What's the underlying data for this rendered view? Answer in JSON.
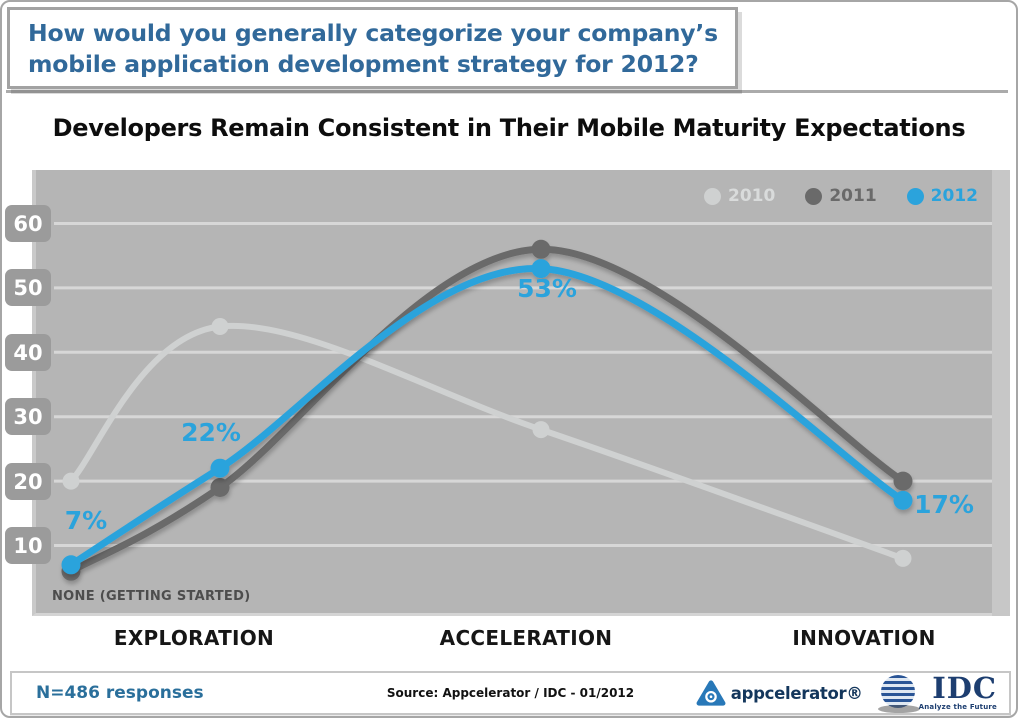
{
  "header": {
    "question": "How would you generally categorize your company’s mobile application development strategy for 2012?"
  },
  "title": "Developers Remain Consistent in Their Mobile Maturity Expectations",
  "chart_data": {
    "type": "line",
    "categories": [
      "NONE (GETTING STARTED)",
      "EXPLORATION",
      "ACCELERATION",
      "INNOVATION"
    ],
    "yticks": [
      60,
      50,
      40,
      30,
      20,
      10
    ],
    "ylim": [
      0,
      65
    ],
    "grid": true,
    "legend_position": "top-right",
    "series": [
      {
        "name": "2010",
        "color": "#cfd1d1",
        "values": [
          20,
          44,
          28,
          8
        ]
      },
      {
        "name": "2011",
        "color": "#6a6a6a",
        "values": [
          6,
          19,
          56,
          20
        ]
      },
      {
        "name": "2012",
        "color": "#2ba3dc",
        "values": [
          7,
          22,
          53,
          17
        ],
        "point_labels": [
          "7%",
          "22%",
          "53%",
          "17%"
        ]
      }
    ]
  },
  "colors": {
    "question_blue": "#31699a",
    "panel_gray": "#b5b5b5",
    "gridline": "#d7d7d7",
    "tick_badge": "#9b9b9b",
    "responses_blue": "#2a6f9b",
    "series_2010": "#cfd1d1",
    "series_2011": "#6a6a6a",
    "series_2012": "#2ba3dc"
  },
  "footer": {
    "responses": "N=486 responses",
    "source": "Source: Appcelerator / IDC - 01/2012",
    "appcelerator_logo": "appcelerator®",
    "idc_logo": "IDC",
    "idc_tagline": "Analyze the Future"
  }
}
